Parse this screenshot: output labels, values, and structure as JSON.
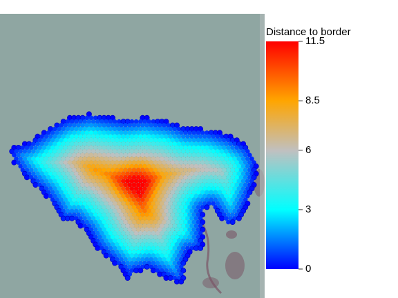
{
  "chart_data": {
    "type": "heatmap",
    "legend": {
      "title": "Distance to border",
      "ticks": [
        {
          "value": 0,
          "label": "0"
        },
        {
          "value": 3,
          "label": "3"
        },
        {
          "value": 6,
          "label": "6"
        },
        {
          "value": 8.5,
          "label": "8.5"
        },
        {
          "value": 11.5,
          "label": "11.5"
        }
      ],
      "range": [
        0,
        11.5
      ],
      "colors": [
        "#0000ff",
        "#00ffff",
        "#c0c0c0",
        "#ffa500",
        "#ff0000"
      ],
      "placement": "right"
    },
    "background": {
      "description_color": "#8fa6a2",
      "tissue_color": "#7a5566"
    },
    "outline_color": "#0000cc",
    "peak_value": 11.5
  }
}
